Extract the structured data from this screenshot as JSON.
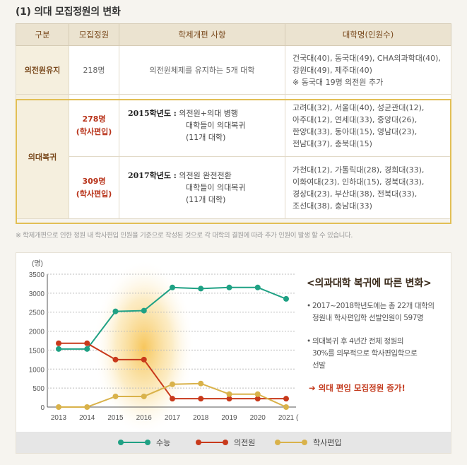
{
  "section_title": "(1) 의대 모집정원의 변화",
  "table": {
    "headers": [
      "구분",
      "모집정원",
      "학제개편 사항",
      "대학명(인원수)"
    ],
    "keep_row": {
      "category": "의전원유지",
      "quota": "218명",
      "reform": "의전원체제를 유지하는 5개 대학",
      "univ_lines": [
        "건국대(40), 동국대(49), CHA의과학대(40),",
        "강원대(49), 제주대(40)",
        "※ 동국대 19명 의전원 추가"
      ]
    },
    "return_category": "의대복귀",
    "return_rows": [
      {
        "quota_line1": "278명",
        "quota_line2": "(학사편입)",
        "year": "2015학년도 :",
        "reform_line1": "의전원+의대 병행",
        "reform_line2": "대학들이 의대복귀",
        "reform_line3": "(11개 대학)",
        "univ_lines": [
          "고려대(32), 서울대(40), 성균관대(12),",
          "아주대(12), 연세대(33), 중앙대(26),",
          "한양대(33), 동아대(15), 영남대(23),",
          "전남대(37), 충북대(15)"
        ]
      },
      {
        "quota_line1": "309명",
        "quota_line2": "(학사편입)",
        "year": "2017학년도 :",
        "reform_line1": "의전원 완전전환",
        "reform_line2": "대학들이 의대복귀",
        "reform_line3": "(11개 대학)",
        "univ_lines": [
          "가천대(12), 가톨릭대(28), 경희대(33),",
          "이화여대(23), 인하대(15), 경북대(33),",
          "경상대(23), 부산대(38), 전북대(33),",
          "조선대(38), 충남대(33)"
        ]
      }
    ]
  },
  "footnote": "※ 학제개편으로 인한 정원 내 학사편입 인원을 기준으로 작성된 것으로 각 대학의 결원에 따라 추가 인원이 발생 할 수 있습니다.",
  "side": {
    "title": "<의과대학 복귀에 따른 변화>",
    "note1_line1": "2017~2018학년도에는 총 22개 대학의",
    "note1_line2": "정원내 학사편입학 선발인원이 597명",
    "note2_line1": "의대복귀 후 4년간 전체 정원의",
    "note2_line2": "30%를 의무적으로 학사편입학으로",
    "note2_line3": "선발",
    "cta": "➔ 의대 편입 모집정원 증가!"
  },
  "colors": {
    "series1": "#1fa184",
    "series2": "#c8391b",
    "series3": "#d9b24a",
    "highlight": "#f6c04a"
  },
  "chart_data": {
    "type": "line",
    "ylabel": "(명)",
    "xlabel": "(학년도)",
    "x": [
      2013,
      2014,
      2015,
      2016,
      2017,
      2018,
      2019,
      2020,
      2021
    ],
    "ylim": [
      0,
      3500
    ],
    "yticks": [
      0,
      500,
      1000,
      1500,
      2000,
      2500,
      3000,
      3500
    ],
    "grid": true,
    "legend_position": "bottom",
    "series": [
      {
        "name": "수능",
        "values": [
          1530,
          1530,
          2520,
          2540,
          3150,
          3120,
          3150,
          3150,
          2850
        ]
      },
      {
        "name": "의전원",
        "values": [
          1680,
          1680,
          1250,
          1250,
          220,
          220,
          220,
          220,
          220
        ]
      },
      {
        "name": "학사편입",
        "values": [
          0,
          0,
          280,
          280,
          600,
          620,
          340,
          340,
          0
        ]
      }
    ]
  }
}
